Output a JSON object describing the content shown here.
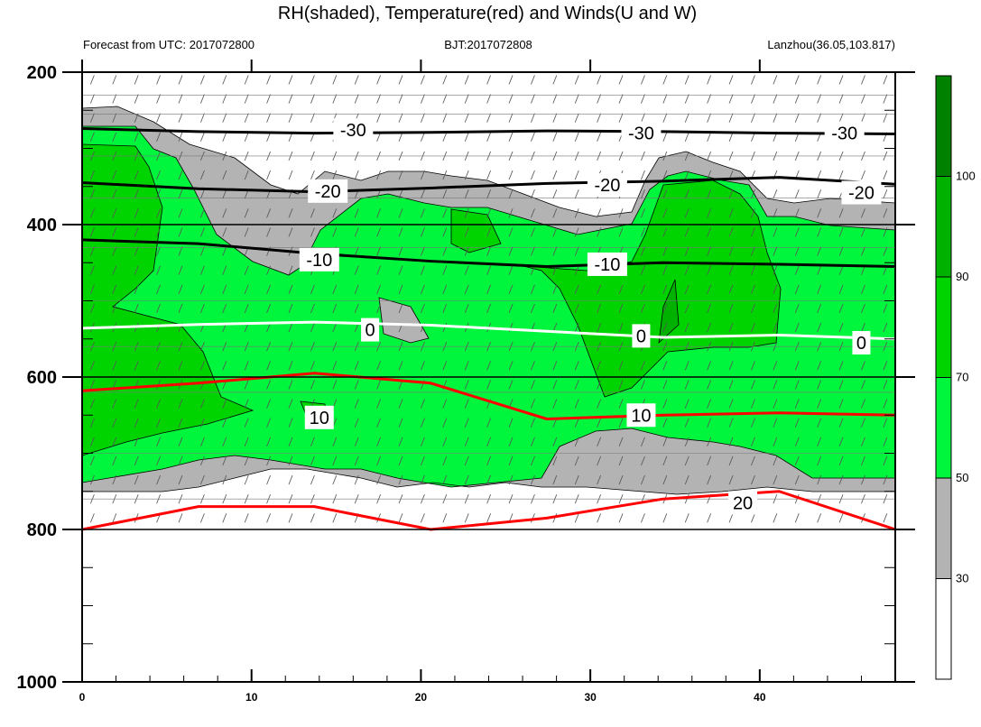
{
  "chart_data": {
    "type": "heatmap",
    "title": "RH(shaded), Temperature(red) and Winds(U and W)",
    "subtitle_left": "Forecast from UTC: 2017072800",
    "subtitle_center": "BJT:2017072808",
    "subtitle_right": "Lanzhou(36.05,103.817)",
    "x_ticks": [
      0,
      10,
      20,
      30,
      40
    ],
    "xlim": [
      0,
      48
    ],
    "y_ticks": [
      200,
      400,
      600,
      800,
      1000
    ],
    "ylim": [
      1000,
      200
    ],
    "y_axis_reversed": true,
    "colorbar": {
      "levels": [
        30,
        50,
        70,
        90,
        100
      ],
      "colors": [
        "#ffffff",
        "#b3b3b3",
        "#00f53d",
        "#00d400",
        "#00b100",
        "#008200"
      ]
    },
    "rh_colors": {
      "lt30": "#ffffff",
      "r30_50": "#b3b3b3",
      "r50_70": "#00f53d",
      "r70_90": "#00d400",
      "r90_100": "#00b100",
      "gt100": "#008200"
    },
    "temperature_contours": [
      {
        "level": -30,
        "color": "#000000",
        "label": "-30",
        "pressure": [
          274,
          278,
          280,
          279,
          277,
          278,
          280,
          281
        ]
      },
      {
        "level": -20,
        "color": "#000000",
        "label": "-20",
        "pressure": [
          345,
          353,
          357,
          352,
          346,
          343,
          338,
          347
        ]
      },
      {
        "level": -10,
        "color": "#000000",
        "label": "-10",
        "pressure": [
          420,
          425,
          438,
          448,
          455,
          450,
          452,
          455
        ]
      },
      {
        "level": 0,
        "color": "#ffffff",
        "label": "0",
        "pressure": [
          536,
          531,
          528,
          532,
          540,
          548,
          545,
          550
        ]
      },
      {
        "level": 10,
        "color": "#ff0000",
        "label": "10",
        "pressure": [
          618,
          608,
          595,
          608,
          655,
          650,
          647,
          650
        ]
      },
      {
        "level": 20,
        "color": "#ff0000",
        "label": "20",
        "pressure": [
          800,
          770,
          770,
          800,
          785,
          760,
          750,
          800
        ]
      }
    ],
    "contour_labels": [
      {
        "text": "-30",
        "x": 16,
        "p": 276
      },
      {
        "text": "-30",
        "x": 33,
        "p": 280
      },
      {
        "text": "-30",
        "x": 45,
        "p": 280
      },
      {
        "text": "-20",
        "x": 14.5,
        "p": 356
      },
      {
        "text": "-20",
        "x": 31,
        "p": 348
      },
      {
        "text": "-20",
        "x": 46,
        "p": 358
      },
      {
        "text": "-10",
        "x": 14,
        "p": 446
      },
      {
        "text": "-10",
        "x": 31,
        "p": 452
      },
      {
        "text": "0",
        "x": 17,
        "p": 538
      },
      {
        "text": "0",
        "x": 33,
        "p": 546
      },
      {
        "text": "0",
        "x": 46,
        "p": 555
      },
      {
        "text": "10",
        "x": 14,
        "p": 653
      },
      {
        "text": "10",
        "x": 33,
        "p": 650
      },
      {
        "text": "20",
        "x": 39,
        "p": 765
      }
    ]
  }
}
